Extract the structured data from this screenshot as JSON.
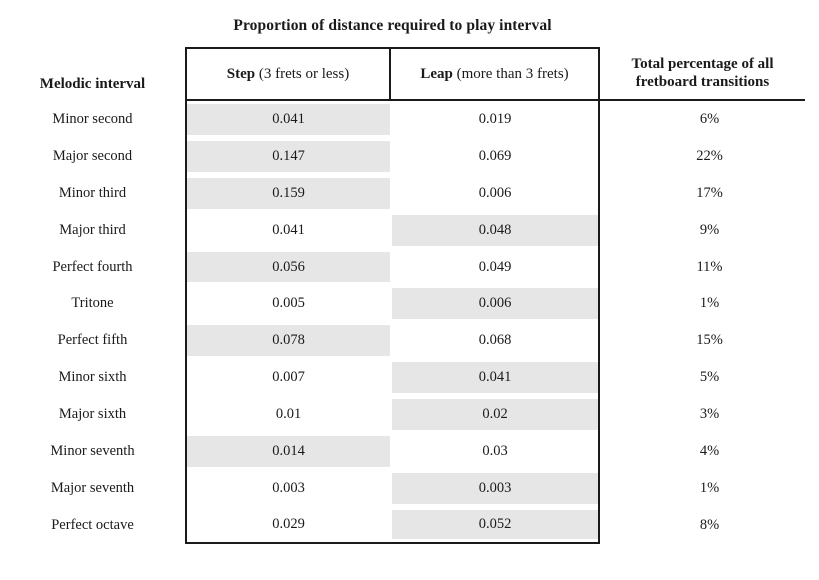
{
  "title": "Proportion of distance required to play interval",
  "header": {
    "melodic": "Melodic interval",
    "step_bold": "Step",
    "step_paren": " (3 frets or less)",
    "leap_bold": "Leap",
    "leap_paren": " (more than 3 frets)",
    "total": "Total percentage of all fretboard transitions"
  },
  "colors": {
    "background": "#ffffff",
    "text": "#1a1a1a",
    "border": "#1a1a1a",
    "highlight": "#e6e6e6"
  },
  "chart_data": {
    "type": "table",
    "title": "Proportion of distance required to play interval",
    "columns": [
      "Melodic interval",
      "Step (3 frets or less)",
      "Leap (more than 3 frets)",
      "Total percentage of all fretboard transitions"
    ],
    "shading_meaning": "gray highlight marks one cell (step or leap) per row",
    "rows": [
      {
        "interval": "Minor second",
        "step": 0.041,
        "leap": 0.019,
        "total_pct": "6%",
        "shaded": "step"
      },
      {
        "interval": "Major second",
        "step": 0.147,
        "leap": 0.069,
        "total_pct": "22%",
        "shaded": "step"
      },
      {
        "interval": "Minor third",
        "step": 0.159,
        "leap": 0.006,
        "total_pct": "17%",
        "shaded": "step"
      },
      {
        "interval": "Major third",
        "step": 0.041,
        "leap": 0.048,
        "total_pct": "9%",
        "shaded": "leap"
      },
      {
        "interval": "Perfect fourth",
        "step": 0.056,
        "leap": 0.049,
        "total_pct": "11%",
        "shaded": "step"
      },
      {
        "interval": "Tritone",
        "step": 0.005,
        "leap": 0.006,
        "total_pct": "1%",
        "shaded": "leap"
      },
      {
        "interval": "Perfect fifth",
        "step": 0.078,
        "leap": 0.068,
        "total_pct": "15%",
        "shaded": "step"
      },
      {
        "interval": "Minor sixth",
        "step": 0.007,
        "leap": 0.041,
        "total_pct": "5%",
        "shaded": "leap"
      },
      {
        "interval": "Major sixth",
        "step": 0.01,
        "leap": 0.02,
        "total_pct": "3%",
        "shaded": "leap"
      },
      {
        "interval": "Minor seventh",
        "step": 0.014,
        "leap": 0.03,
        "total_pct": "4%",
        "shaded": "step"
      },
      {
        "interval": "Major seventh",
        "step": 0.003,
        "leap": 0.003,
        "total_pct": "1%",
        "shaded": "leap"
      },
      {
        "interval": "Perfect octave",
        "step": 0.029,
        "leap": 0.052,
        "total_pct": "8%",
        "shaded": "leap"
      }
    ]
  }
}
